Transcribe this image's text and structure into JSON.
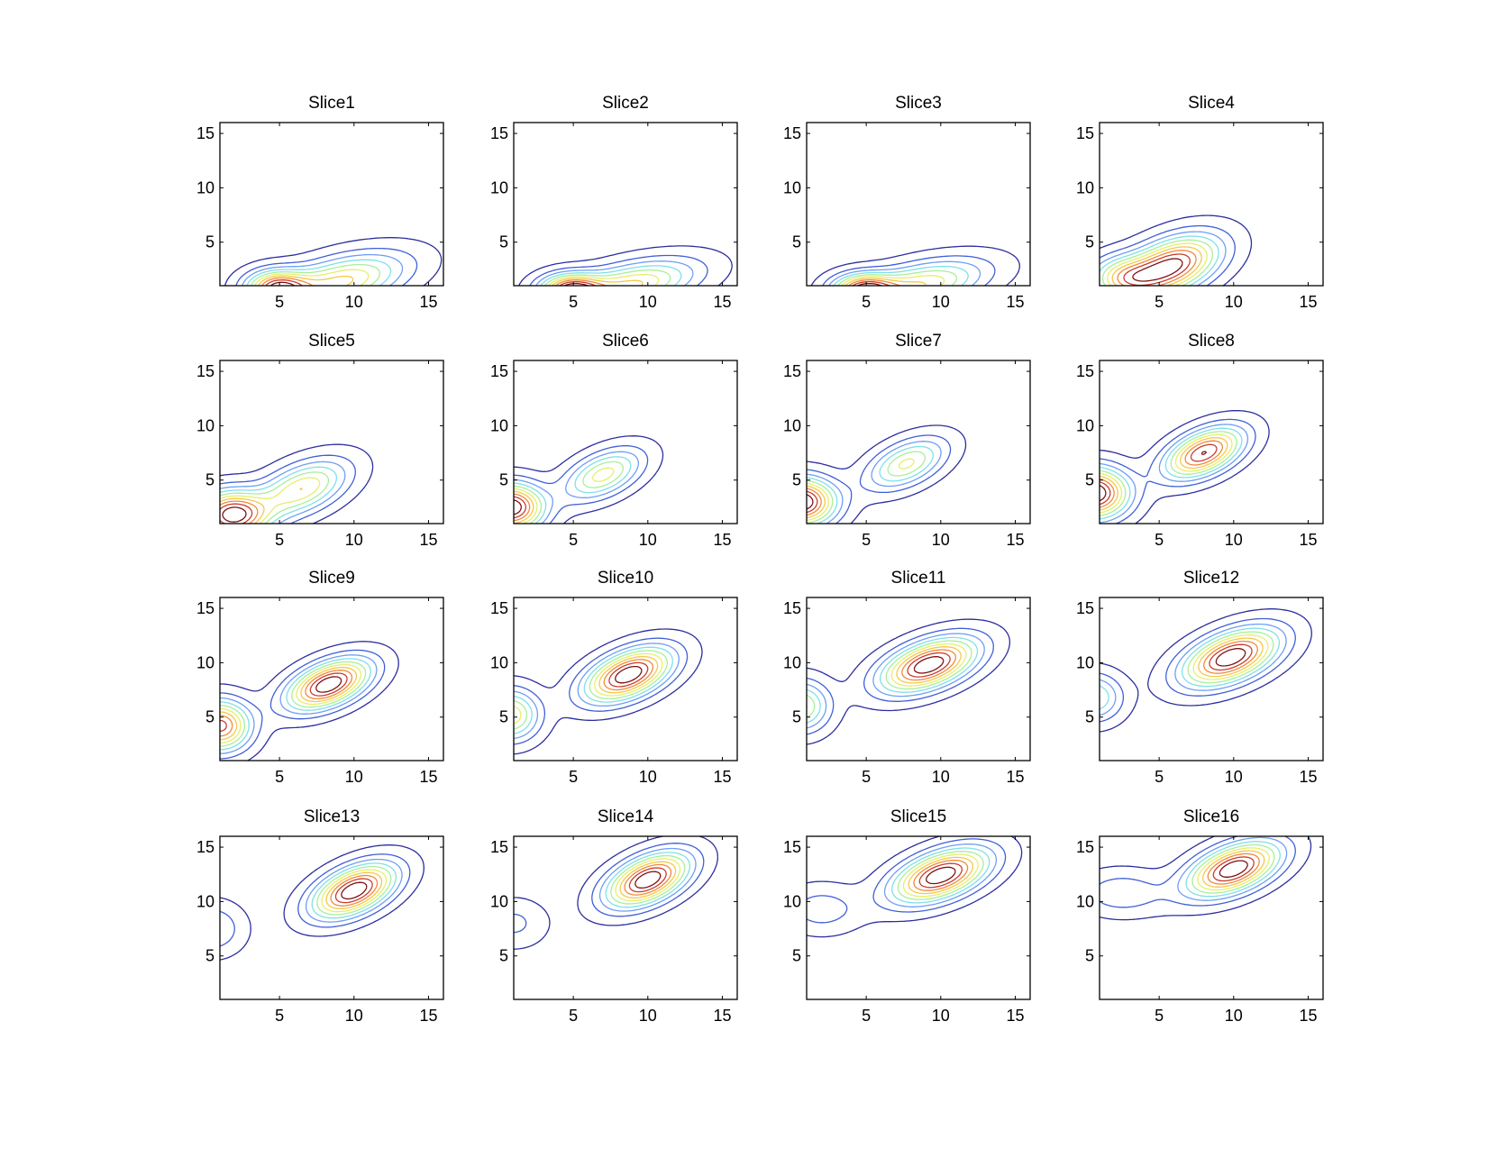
{
  "figure": {
    "layout": {
      "rows": 4,
      "cols": 4
    },
    "level_colors": [
      "#2b2d9e",
      "#3f5fd6",
      "#6f9ef5",
      "#7fe0e8",
      "#a8ef9a",
      "#e6ef6a",
      "#f5c84a",
      "#ef8a3a",
      "#cc3a2a",
      "#7a1010"
    ]
  },
  "chart_data": [
    {
      "type": "contour",
      "title": "Slice1",
      "xlim": [
        1,
        16
      ],
      "ylim": [
        1,
        16
      ],
      "xticks": [
        5,
        10,
        15
      ],
      "yticks": [
        5,
        10,
        15
      ],
      "peaks": [
        {
          "x": 9.0,
          "y": 1.3,
          "a": 0.78,
          "sx": 3.0,
          "sy": 1.8,
          "rho": 0.5
        },
        {
          "x": 4.8,
          "y": 0.8,
          "a": 0.95,
          "sx": 1.4,
          "sy": 1.1,
          "rho": 0
        }
      ]
    },
    {
      "type": "contour",
      "title": "Slice2",
      "xlim": [
        1,
        16
      ],
      "ylim": [
        1,
        16
      ],
      "xticks": [
        5,
        10,
        15
      ],
      "yticks": [
        5,
        10,
        15
      ],
      "peaks": [
        {
          "x": 8.8,
          "y": 1.0,
          "a": 0.72,
          "sx": 3.0,
          "sy": 1.6,
          "rho": 0.5
        },
        {
          "x": 4.8,
          "y": 0.6,
          "a": 0.95,
          "sx": 1.4,
          "sy": 1.0,
          "rho": 0
        }
      ]
    },
    {
      "type": "contour",
      "title": "Slice3",
      "xlim": [
        1,
        16
      ],
      "ylim": [
        1,
        16
      ],
      "xticks": [
        5,
        10,
        15
      ],
      "yticks": [
        5,
        10,
        15
      ],
      "peaks": [
        {
          "x": 8.5,
          "y": 1.0,
          "a": 0.72,
          "sx": 3.0,
          "sy": 1.6,
          "rho": 0.5
        },
        {
          "x": 4.8,
          "y": 0.6,
          "a": 0.95,
          "sx": 1.4,
          "sy": 1.0,
          "rho": 0
        }
      ]
    },
    {
      "type": "contour",
      "title": "Slice4",
      "xlim": [
        1,
        16
      ],
      "ylim": [
        1,
        16
      ],
      "xticks": [
        5,
        10,
        15
      ],
      "yticks": [
        5,
        10,
        15
      ],
      "peaks": [
        {
          "x": 5.8,
          "y": 2.8,
          "a": 1.0,
          "sx": 2.2,
          "sy": 1.9,
          "rho": 0.45
        },
        {
          "x": 2.5,
          "y": 1.8,
          "a": 0.5,
          "sx": 1.5,
          "sy": 1.3,
          "rho": 0
        }
      ]
    },
    {
      "type": "contour",
      "title": "Slice5",
      "xlim": [
        1,
        16
      ],
      "ylim": [
        1,
        16
      ],
      "xticks": [
        5,
        10,
        15
      ],
      "yticks": [
        5,
        10,
        15
      ],
      "peaks": [
        {
          "x": 6.5,
          "y": 4.2,
          "a": 0.65,
          "sx": 2.1,
          "sy": 1.8,
          "rho": 0.5
        },
        {
          "x": 1.8,
          "y": 1.8,
          "a": 1.0,
          "sx": 1.6,
          "sy": 1.5,
          "rho": 0
        }
      ]
    },
    {
      "type": "contour",
      "title": "Slice6",
      "xlim": [
        1,
        16
      ],
      "ylim": [
        1,
        16
      ],
      "xticks": [
        5,
        10,
        15
      ],
      "yticks": [
        5,
        10,
        15
      ],
      "peaks": [
        {
          "x": 7.0,
          "y": 5.5,
          "a": 0.45,
          "sx": 1.8,
          "sy": 1.6,
          "rho": 0.5
        },
        {
          "x": 0.8,
          "y": 2.5,
          "a": 0.8,
          "sx": 1.5,
          "sy": 1.5,
          "rho": 0
        }
      ]
    },
    {
      "type": "contour",
      "title": "Slice7",
      "xlim": [
        1,
        16
      ],
      "ylim": [
        1,
        16
      ],
      "xticks": [
        5,
        10,
        15
      ],
      "yticks": [
        5,
        10,
        15
      ],
      "peaks": [
        {
          "x": 7.7,
          "y": 6.5,
          "a": 0.45,
          "sx": 1.8,
          "sy": 1.6,
          "rho": 0.5
        },
        {
          "x": 0.6,
          "y": 3.0,
          "a": 0.85,
          "sx": 1.6,
          "sy": 1.5,
          "rho": 0
        }
      ]
    },
    {
      "type": "contour",
      "title": "Slice8",
      "xlim": [
        1,
        16
      ],
      "ylim": [
        1,
        16
      ],
      "xticks": [
        5,
        10,
        15
      ],
      "yticks": [
        5,
        10,
        15
      ],
      "peaks": [
        {
          "x": 8.0,
          "y": 7.5,
          "a": 0.75,
          "sx": 1.8,
          "sy": 1.6,
          "rho": 0.5
        },
        {
          "x": 0.6,
          "y": 3.8,
          "a": 0.85,
          "sx": 1.6,
          "sy": 1.6,
          "rho": 0
        }
      ]
    },
    {
      "type": "contour",
      "title": "Slice9",
      "xlim": [
        1,
        16
      ],
      "ylim": [
        1,
        16
      ],
      "xticks": [
        5,
        10,
        15
      ],
      "yticks": [
        5,
        10,
        15
      ],
      "peaks": [
        {
          "x": 8.3,
          "y": 8.0,
          "a": 1.0,
          "sx": 1.9,
          "sy": 1.6,
          "rho": 0.5
        },
        {
          "x": 1.0,
          "y": 4.2,
          "a": 0.85,
          "sx": 1.4,
          "sy": 1.6,
          "rho": 0
        }
      ]
    },
    {
      "type": "contour",
      "title": "Slice10",
      "xlim": [
        1,
        16
      ],
      "ylim": [
        1,
        16
      ],
      "xticks": [
        5,
        10,
        15
      ],
      "yticks": [
        5,
        10,
        15
      ],
      "peaks": [
        {
          "x": 8.7,
          "y": 8.9,
          "a": 1.0,
          "sx": 2.0,
          "sy": 1.7,
          "rho": 0.5
        },
        {
          "x": 0.8,
          "y": 5.2,
          "a": 0.6,
          "sx": 1.3,
          "sy": 1.6,
          "rho": 0
        }
      ]
    },
    {
      "type": "contour",
      "title": "Slice11",
      "xlim": [
        1,
        16
      ],
      "ylim": [
        1,
        16
      ],
      "xticks": [
        5,
        10,
        15
      ],
      "yticks": [
        5,
        10,
        15
      ],
      "peaks": [
        {
          "x": 9.2,
          "y": 9.8,
          "a": 1.0,
          "sx": 2.2,
          "sy": 1.7,
          "rho": 0.5
        },
        {
          "x": 0.6,
          "y": 6.0,
          "a": 0.55,
          "sx": 1.3,
          "sy": 1.6,
          "rho": 0
        }
      ]
    },
    {
      "type": "contour",
      "title": "Slice12",
      "xlim": [
        1,
        16
      ],
      "ylim": [
        1,
        16
      ],
      "xticks": [
        5,
        10,
        15
      ],
      "yticks": [
        5,
        10,
        15
      ],
      "peaks": [
        {
          "x": 9.8,
          "y": 10.5,
          "a": 1.0,
          "sx": 2.2,
          "sy": 1.8,
          "rho": 0.5
        },
        {
          "x": 0.6,
          "y": 6.8,
          "a": 0.45,
          "sx": 1.3,
          "sy": 1.5,
          "rho": 0
        }
      ]
    },
    {
      "type": "contour",
      "title": "Slice13",
      "xlim": [
        1,
        16
      ],
      "ylim": [
        1,
        16
      ],
      "xticks": [
        5,
        10,
        15
      ],
      "yticks": [
        5,
        10,
        15
      ],
      "peaks": [
        {
          "x": 10.0,
          "y": 11.0,
          "a": 0.8,
          "sx": 1.9,
          "sy": 1.7,
          "rho": 0.5
        },
        {
          "x": 0.5,
          "y": 7.5,
          "a": 0.2,
          "sx": 1.4,
          "sy": 1.6,
          "rho": 0
        }
      ]
    },
    {
      "type": "contour",
      "title": "Slice14",
      "xlim": [
        1,
        16
      ],
      "ylim": [
        1,
        16
      ],
      "xticks": [
        5,
        10,
        15
      ],
      "yticks": [
        5,
        10,
        15
      ],
      "peaks": [
        {
          "x": 10.0,
          "y": 12.0,
          "a": 0.9,
          "sx": 1.9,
          "sy": 1.7,
          "rho": 0.5
        },
        {
          "x": 1.0,
          "y": 8.0,
          "a": 0.15,
          "sx": 1.5,
          "sy": 1.5,
          "rho": 0
        }
      ]
    },
    {
      "type": "contour",
      "title": "Slice15",
      "xlim": [
        1,
        16
      ],
      "ylim": [
        1,
        16
      ],
      "xticks": [
        5,
        10,
        15
      ],
      "yticks": [
        5,
        10,
        15
      ],
      "peaks": [
        {
          "x": 10.0,
          "y": 12.4,
          "a": 1.0,
          "sx": 2.2,
          "sy": 1.7,
          "rho": 0.5
        },
        {
          "x": 2.0,
          "y": 9.3,
          "a": 0.2,
          "sx": 1.8,
          "sy": 1.5,
          "rho": 0
        }
      ]
    },
    {
      "type": "contour",
      "title": "Slice16",
      "xlim": [
        1,
        16
      ],
      "ylim": [
        1,
        16
      ],
      "xticks": [
        5,
        10,
        15
      ],
      "yticks": [
        5,
        10,
        15
      ],
      "peaks": [
        {
          "x": 10.0,
          "y": 13.0,
          "a": 0.9,
          "sx": 2.1,
          "sy": 1.7,
          "rho": 0.5
        },
        {
          "x": 2.5,
          "y": 10.8,
          "a": 0.2,
          "sx": 2.0,
          "sy": 1.4,
          "rho": 0
        }
      ]
    }
  ]
}
